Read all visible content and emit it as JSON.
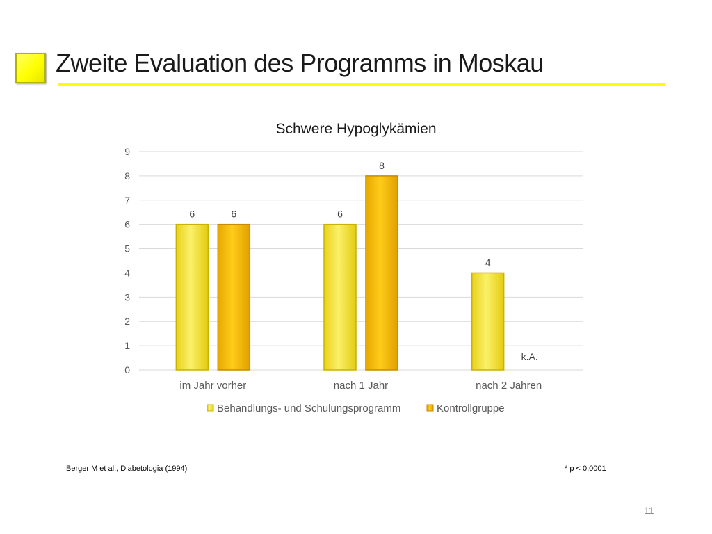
{
  "slide": {
    "title": "Zweite Evaluation des Programms in Moskau",
    "citation": "Berger M et al., Diabetologia (1994)",
    "significance_note": "* p < 0,0001",
    "page_number": "11",
    "accent_color": "#ffff00"
  },
  "chart_data": {
    "type": "bar",
    "title": "Schwere Hypoglykämien",
    "xlabel": "",
    "ylabel": "",
    "categories": [
      "im Jahr vorher",
      "nach 1 Jahr",
      "nach 2 Jahren"
    ],
    "series": [
      {
        "name": "Behandlungs- und Schulungsprogramm",
        "values": [
          6,
          6,
          4
        ],
        "color": "#f7e93a"
      },
      {
        "name": "Kontrollgruppe",
        "values": [
          6,
          8,
          null
        ],
        "color": "#ffc000"
      }
    ],
    "missing_label": "k.A.",
    "ylim": [
      0,
      9
    ],
    "yticks": [
      0,
      1,
      2,
      3,
      4,
      5,
      6,
      7,
      8,
      9
    ],
    "grid": true,
    "legend_position": "bottom"
  }
}
